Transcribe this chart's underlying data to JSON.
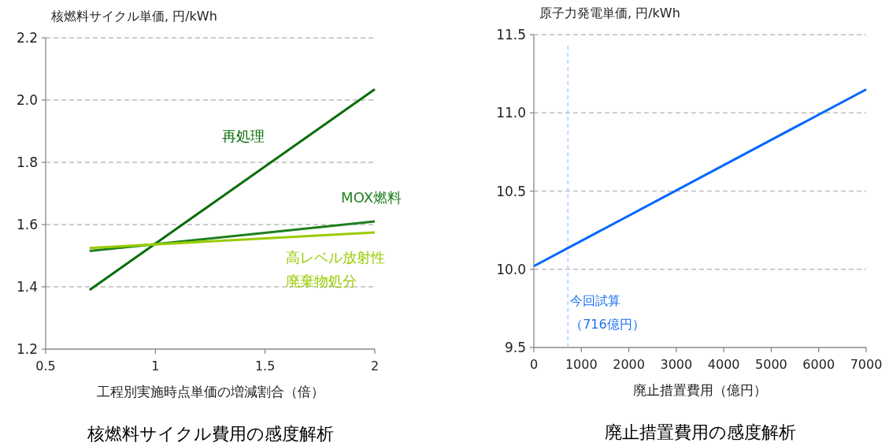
{
  "chart_data": [
    {
      "type": "line",
      "title": "核燃料サイクル費用の感度解析",
      "ylabel": "核燃料サイクル単価, 円/kWh",
      "xlabel": "工程別実施時点単価の増減割合（倍）",
      "x": [
        0.7,
        2
      ],
      "series": [
        {
          "name": "再処理",
          "color": "#0b6e0b",
          "values": [
            1.39,
            2.035
          ]
        },
        {
          "name": "MOX燃料",
          "color": "#1f7f1f",
          "values": [
            1.515,
            1.61
          ]
        },
        {
          "name": "高レベル放射性廃棄物処分",
          "color": "#99cc00",
          "values": [
            1.525,
            1.575
          ]
        }
      ],
      "xlim": [
        0.5,
        2
      ],
      "xticks": [
        0.5,
        1,
        1.5,
        2
      ],
      "ylim": [
        1.2,
        2.2
      ],
      "yticks": [
        {
          "value": 1.2,
          "label": "1.2"
        },
        {
          "value": 1.4,
          "label": "1.4"
        },
        {
          "value": 1.6,
          "label": "1.6"
        },
        {
          "value": 1.8,
          "label": "1.8"
        },
        {
          "value": 2,
          "label": "2.0"
        },
        {
          "value": 2.2,
          "label": "2.2"
        }
      ],
      "grid": "y"
    },
    {
      "type": "line",
      "title": "廃止措置費用の感度解析",
      "ylabel": "原子力発電単価, 円/kWh",
      "xlabel": "廃止措置費用（億円）",
      "x": [
        0,
        7000
      ],
      "series": [
        {
          "color": "#0066ff",
          "values": [
            10.02,
            11.15
          ]
        }
      ],
      "xlim": [
        0,
        7000
      ],
      "xticks": [
        0,
        1000,
        2000,
        3000,
        4000,
        5000,
        6000,
        7000
      ],
      "ylim": [
        9.5,
        11.5
      ],
      "yticks": [
        9.5,
        {
          "value": 10,
          "label": "10.0"
        },
        10.5,
        {
          "value": 11,
          "label": "11.0"
        },
        11.5
      ],
      "ref_lines": [
        {
          "axis": "x",
          "value": 716,
          "label": "今回試算（716億円）",
          "color": "#99ccff",
          "line_style": "dashed"
        }
      ],
      "grid": "y"
    }
  ]
}
